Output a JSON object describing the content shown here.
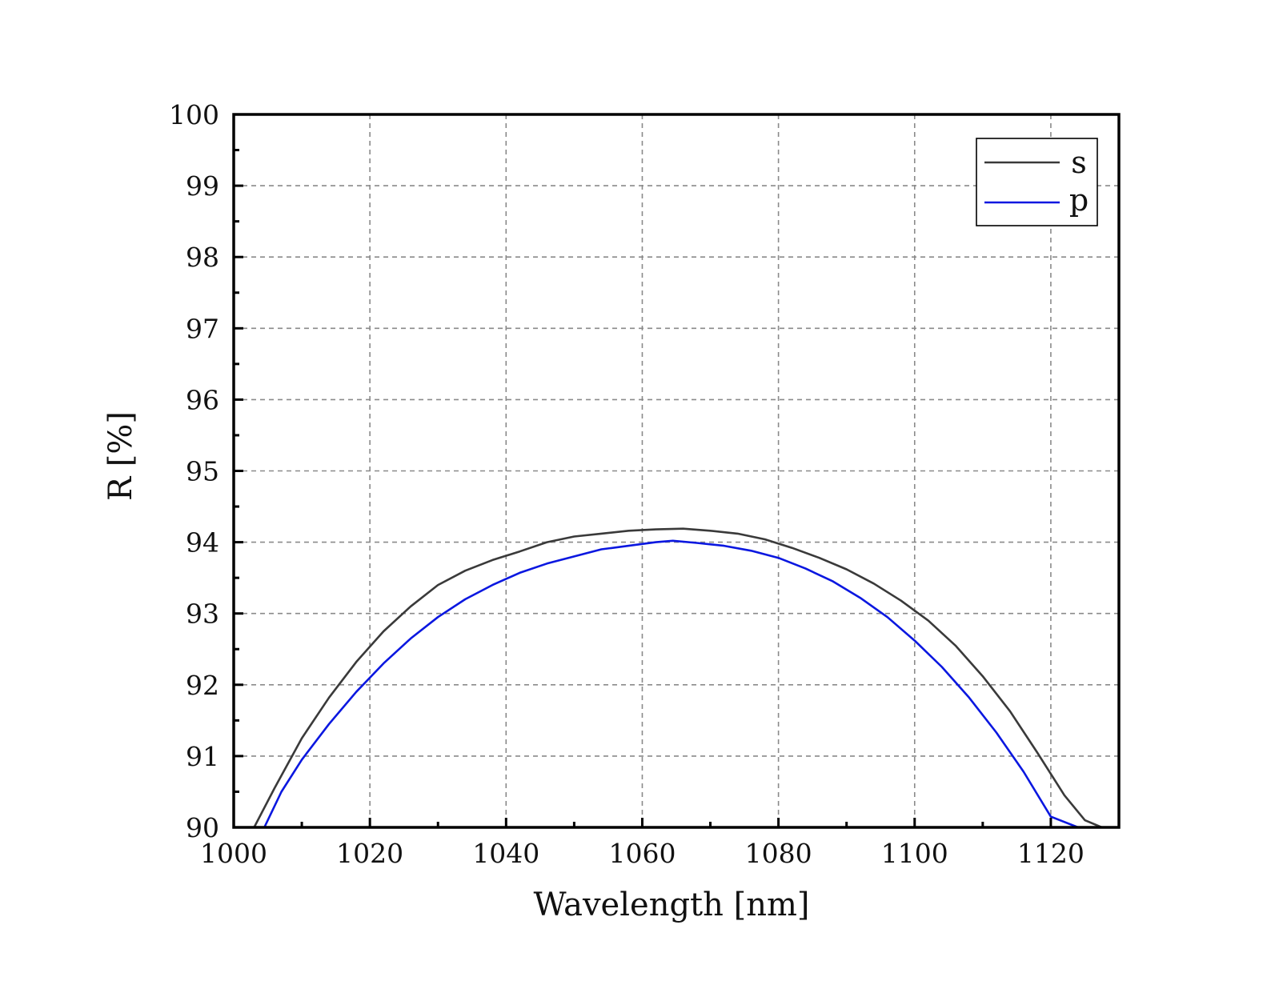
{
  "chart_data": {
    "type": "line",
    "title": "",
    "xlabel": "Wavelength [nm]",
    "ylabel": "R [%]",
    "xlim": [
      1000,
      1130
    ],
    "ylim": [
      90,
      100
    ],
    "x_major_ticks": [
      1000,
      1020,
      1040,
      1060,
      1080,
      1100,
      1120
    ],
    "x_tick_labels": [
      "1000",
      "1020",
      "1040",
      "1060",
      "1080",
      "1100",
      "1120"
    ],
    "x_minor_ticks": [
      1010,
      1030,
      1050,
      1070,
      1090,
      1110,
      1130
    ],
    "y_major_ticks": [
      90,
      91,
      92,
      93,
      94,
      95,
      96,
      97,
      98,
      99,
      100
    ],
    "y_tick_labels": [
      "90",
      "91",
      "92",
      "93",
      "94",
      "95",
      "96",
      "97",
      "98",
      "99",
      "100"
    ],
    "grid": true,
    "legend_position": "top-right",
    "series": [
      {
        "name": "s",
        "color": "#3a3a3a",
        "x": [
          1003,
          1006,
          1010,
          1014,
          1018,
          1022,
          1026,
          1030,
          1034,
          1038,
          1042,
          1046,
          1050,
          1054,
          1058,
          1062,
          1066,
          1070,
          1074,
          1078,
          1082,
          1086,
          1090,
          1094,
          1098,
          1102,
          1106,
          1110,
          1114,
          1118,
          1122,
          1125,
          1127.5
        ],
        "values": [
          90.0,
          90.55,
          91.25,
          91.82,
          92.32,
          92.75,
          93.1,
          93.4,
          93.6,
          93.75,
          93.87,
          94.0,
          94.08,
          94.12,
          94.16,
          94.18,
          94.19,
          94.16,
          94.12,
          94.04,
          93.92,
          93.78,
          93.62,
          93.42,
          93.18,
          92.9,
          92.55,
          92.12,
          91.63,
          91.05,
          90.45,
          90.1,
          90.0
        ]
      },
      {
        "name": "p",
        "color": "#0a17e0",
        "x": [
          1004.5,
          1007,
          1010,
          1014,
          1018,
          1022,
          1026,
          1030,
          1034,
          1038,
          1042,
          1046,
          1050,
          1054,
          1058,
          1062,
          1064.5,
          1068,
          1072,
          1076,
          1080,
          1084,
          1088,
          1092,
          1096,
          1100,
          1104,
          1108,
          1112,
          1116,
          1120,
          1124,
          1126
        ],
        "values": [
          90.0,
          90.5,
          90.95,
          91.45,
          91.9,
          92.3,
          92.65,
          92.95,
          93.2,
          93.4,
          93.57,
          93.7,
          93.8,
          93.9,
          93.95,
          94.0,
          94.02,
          93.99,
          93.95,
          93.88,
          93.78,
          93.63,
          93.45,
          93.22,
          92.95,
          92.62,
          92.25,
          91.82,
          91.33,
          90.78,
          90.15,
          90.0,
          90.0
        ]
      }
    ]
  }
}
